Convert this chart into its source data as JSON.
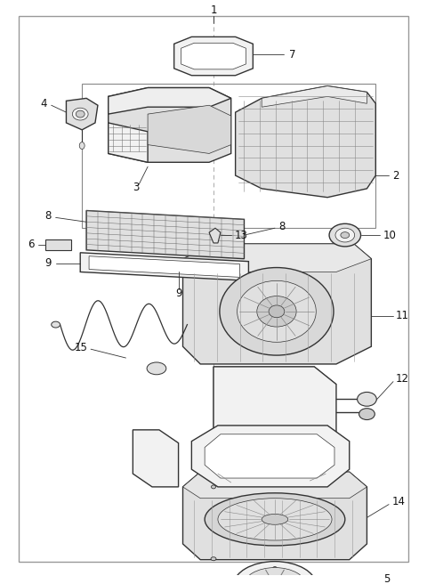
{
  "fig_width": 4.8,
  "fig_height": 6.56,
  "dpi": 100,
  "bg_color": "#ffffff",
  "border_color": "#aaaaaa",
  "lc": "#333333",
  "tc": "#111111",
  "fc_light": "#f2f2f2",
  "fc_mid": "#e0e0e0",
  "fc_dark": "#cccccc",
  "lw_main": 1.0,
  "lw_thin": 0.5,
  "fs_label": 8.5
}
